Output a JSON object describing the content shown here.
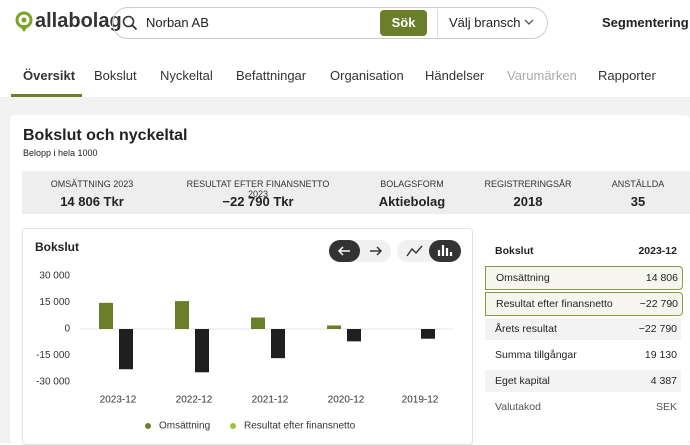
{
  "header": {
    "logo": "allabolag",
    "search_query": "Norban AB",
    "search_button": "Sök",
    "industry_select": "Välj bransch",
    "segment_link": "Segmentering"
  },
  "tabs": {
    "items": [
      "Översikt",
      "Bokslut",
      "Nyckeltal",
      "Befattningar",
      "Organisation",
      "Händelser",
      "Varumärken",
      "Rapporter"
    ],
    "active": 0,
    "muted": 6
  },
  "section": {
    "title": "Bokslut och nyckeltal",
    "subtitle": "Belopp i hela 1000"
  },
  "stats": [
    {
      "label": "OMSÄTTNING 2023",
      "value": "14 806 Tkr"
    },
    {
      "label": "RESULTAT EFTER FINANSNETTO 2023",
      "value": "−22 790 Tkr"
    },
    {
      "label": "BOLAGSFORM",
      "value": "Aktiebolag"
    },
    {
      "label": "REGISTRERINGSÅR",
      "value": "2018"
    },
    {
      "label": "ANSTÄLLDA",
      "value": "35"
    }
  ],
  "chart": {
    "type": "bar",
    "title": "Bokslut",
    "categories": [
      "2023-12",
      "2022-12",
      "2021-12",
      "2020-12",
      "2019-12"
    ],
    "series": [
      {
        "name": "Omsättning",
        "color": "#6b7f2a",
        "legend_color": "#6b7f2a",
        "values": [
          14806,
          15800,
          6500,
          2000,
          0
        ]
      },
      {
        "name": "Resultat efter finansnetto",
        "color": "#1f1f1f",
        "legend_color": "#9cc23a",
        "values": [
          -22790,
          -24500,
          -16500,
          -7000,
          -5500
        ]
      }
    ],
    "ylim": [
      -30000,
      30000
    ],
    "yticks": [
      {
        "value": 30000,
        "label": "30 000"
      },
      {
        "value": 15000,
        "label": "15 000"
      },
      0,
      {
        "value": -15000,
        "label": "-15 000"
      },
      {
        "value": -30000,
        "label": "-30 000"
      }
    ]
  },
  "table": {
    "header": [
      "Bokslut",
      "2023-12"
    ],
    "rows": [
      [
        "Omsättning",
        "14 806"
      ],
      [
        "Resultat efter finansnetto",
        "−22 790"
      ],
      [
        "Årets resultat",
        "−22 790"
      ],
      [
        "Summa tillgångar",
        "19 130"
      ],
      [
        "Eget kapital",
        "4 387"
      ],
      [
        "Valutakod",
        "SEK"
      ]
    ]
  }
}
